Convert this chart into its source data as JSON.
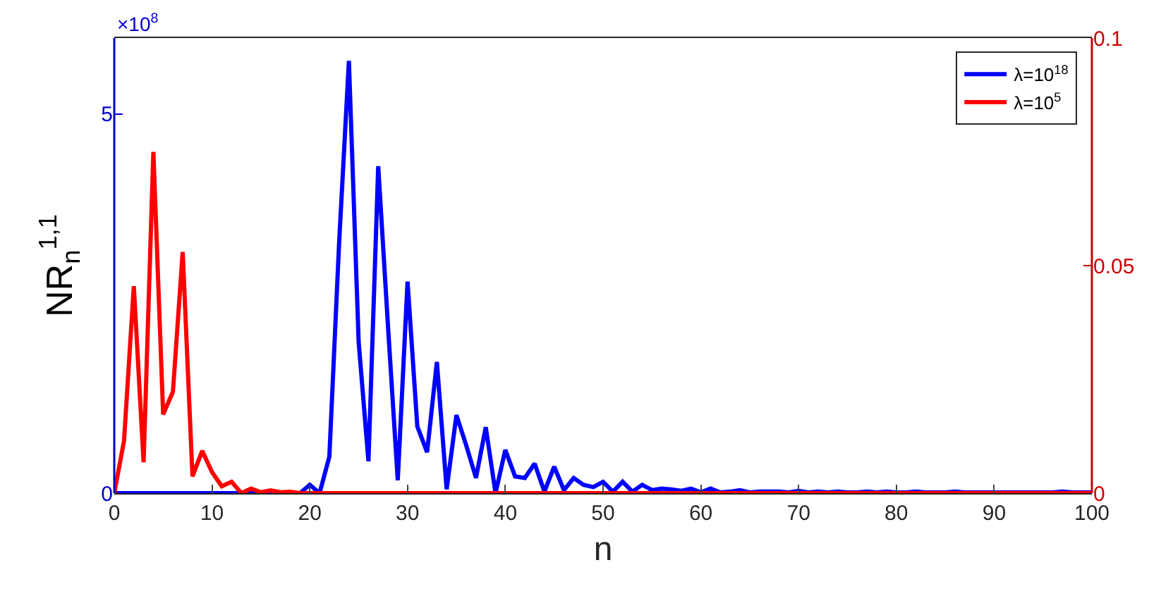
{
  "chart_data": {
    "type": "line",
    "xlabel": "n",
    "ylabel": "NR$_{n}$$^{1,1}$",
    "annotations": [
      "×10$^{8}$"
    ],
    "x": [
      0,
      1,
      2,
      3,
      4,
      5,
      6,
      7,
      8,
      9,
      10,
      11,
      12,
      13,
      14,
      15,
      16,
      17,
      18,
      19,
      20,
      21,
      22,
      23,
      24,
      25,
      26,
      27,
      28,
      29,
      30,
      31,
      32,
      33,
      34,
      35,
      36,
      37,
      38,
      39,
      40,
      41,
      42,
      43,
      44,
      45,
      46,
      47,
      48,
      49,
      50,
      51,
      52,
      53,
      54,
      55,
      56,
      57,
      58,
      59,
      60,
      61,
      62,
      63,
      64,
      65,
      66,
      67,
      68,
      69,
      70,
      71,
      72,
      73,
      74,
      75,
      76,
      77,
      78,
      79,
      80,
      81,
      82,
      83,
      84,
      85,
      86,
      87,
      88,
      89,
      90,
      91,
      92,
      93,
      94,
      95,
      96,
      97,
      98,
      99,
      100
    ],
    "series": [
      {
        "name": "λ=10$^{18}$",
        "color": "#0000ff",
        "values": [
          0,
          0,
          0,
          0,
          0,
          0,
          0,
          0,
          0,
          0,
          0,
          0,
          0,
          0,
          0,
          0,
          0,
          0,
          0,
          0,
          0.11,
          0,
          0.48,
          3.3,
          5.7,
          1.99,
          0.42,
          4.31,
          2.2,
          0.17,
          2.79,
          0.88,
          0.54,
          1.73,
          0.05,
          1.03,
          0.63,
          0.2,
          0.87,
          0,
          0.57,
          0.22,
          0.2,
          0.39,
          0.02,
          0.35,
          0.04,
          0.2,
          0.11,
          0.08,
          0.15,
          0.02,
          0.15,
          0.02,
          0.11,
          0.04,
          0.06,
          0.05,
          0.03,
          0.06,
          0.01,
          0.06,
          0.01,
          0.02,
          0.04,
          0.01,
          0.02,
          0.02,
          0.02,
          0.01,
          0.03,
          0.01,
          0.02,
          0.01,
          0.02,
          0.01,
          0.01,
          0.02,
          0.01,
          0.02,
          0.01,
          0.01,
          0.02,
          0.01,
          0.01,
          0.01,
          0.02,
          0.01,
          0.01,
          0.01,
          0.01,
          0.01,
          0.01,
          0.01,
          0.01,
          0.01,
          0.01,
          0.02,
          0.01,
          0.01,
          0.01
        ]
      },
      {
        "name": "λ=10$^{5}$",
        "color": "#ff0000",
        "axis": "y2",
        "values": [
          0,
          0.0115,
          0.0455,
          0.0068,
          0.075,
          0.0173,
          0.0223,
          0.053,
          0.0037,
          0.0093,
          0.0046,
          0.0015,
          0.0025,
          0,
          0.001,
          0.0002,
          0.0006,
          0.0002,
          0.0003,
          0,
          0,
          0,
          0,
          0,
          0,
          0,
          0,
          0,
          0,
          0,
          0,
          0,
          0,
          0,
          0,
          0,
          0,
          0,
          0,
          0,
          0,
          0,
          0,
          0,
          0,
          0,
          0,
          0,
          0,
          0,
          0,
          0,
          0,
          0,
          0,
          0,
          0,
          0,
          0,
          0,
          0,
          0,
          0,
          0,
          0,
          0,
          0,
          0,
          0,
          0,
          0,
          0,
          0,
          0,
          0,
          0,
          0,
          0,
          0,
          0,
          0,
          0,
          0,
          0,
          0,
          0,
          0,
          0,
          0,
          0,
          0,
          0,
          0,
          0,
          0,
          0,
          0,
          0,
          0,
          0,
          0
        ]
      }
    ],
    "xlim": [
      0,
      100
    ],
    "xticks": [
      0,
      10,
      20,
      30,
      40,
      50,
      60,
      70,
      80,
      90,
      100
    ],
    "ylim": [
      0,
      6
    ],
    "yticks": [
      0,
      5
    ],
    "y2lim": [
      0,
      0.1
    ],
    "y2ticks": [
      0,
      0.05,
      0.1
    ],
    "grid": false,
    "legend": "top right",
    "marker": "none",
    "line_style": "solid"
  }
}
